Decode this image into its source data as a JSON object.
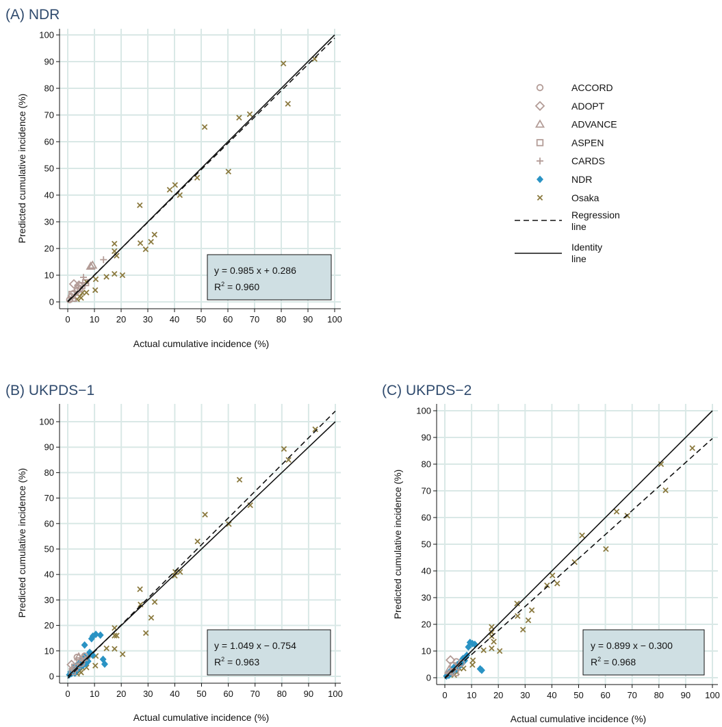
{
  "colors": {
    "trial_marker": "#b39c97",
    "ndr_marker": "#2a93c4",
    "osaka_marker": "#8b7a3f",
    "grid": "#d9e8e6",
    "equation_box": "#cfdfe3",
    "title": "#2f4a6d"
  },
  "legend": {
    "items": [
      {
        "label": "ACCORD",
        "marker": "circle-icon"
      },
      {
        "label": "ADOPT",
        "marker": "diamond-icon"
      },
      {
        "label": "ADVANCE",
        "marker": "triangle-icon"
      },
      {
        "label": "ASPEN",
        "marker": "square-icon"
      },
      {
        "label": "CARDS",
        "marker": "plus-icon"
      },
      {
        "label": "NDR",
        "marker": "filled-diamond-icon"
      },
      {
        "label": "Osaka",
        "marker": "cross-icon"
      }
    ],
    "regression": [
      "Regression",
      "line"
    ],
    "identity": [
      "Identity",
      "line"
    ]
  },
  "chart_data": [
    {
      "type": "scatter",
      "title": "(A) NDR",
      "xlabel": "Actual cumulative incidence (%)",
      "ylabel": "Predicted cumulative incidence (%)",
      "xlim": [
        0,
        100
      ],
      "ylim": [
        0,
        100
      ],
      "ticks": [
        "0",
        "10",
        "20",
        "30",
        "40",
        "50",
        "60",
        "70",
        "80",
        "90",
        "100"
      ],
      "grid": true,
      "equation": "y = 0.985 x + 0.286",
      "r2_prefix": "R",
      "r2_sup": "2",
      "r2_value": " = 0.960",
      "regression": {
        "slope": 0.985,
        "intercept": 0.286
      },
      "series": {
        "osaka": [
          [
            92.5,
            91
          ],
          [
            80.8,
            89.3
          ],
          [
            82.5,
            74.2
          ],
          [
            68.2,
            70.3
          ],
          [
            64.2,
            69
          ],
          [
            51.3,
            65.5
          ],
          [
            60.2,
            48.8
          ],
          [
            48.5,
            46.5
          ],
          [
            40.2,
            43.8
          ],
          [
            38.2,
            42
          ],
          [
            42,
            40
          ],
          [
            27,
            36.2
          ],
          [
            32.5,
            25.2
          ],
          [
            31.2,
            22.5
          ],
          [
            27.2,
            22
          ],
          [
            29.2,
            19.7
          ],
          [
            17.5,
            21.8
          ],
          [
            17.5,
            19
          ],
          [
            18.3,
            17.3
          ],
          [
            17.5,
            10.5
          ],
          [
            20.5,
            10
          ],
          [
            14.5,
            9.4
          ],
          [
            10.5,
            8.5
          ],
          [
            10.3,
            4.4
          ],
          [
            7,
            7.5
          ],
          [
            7,
            3.5
          ],
          [
            5.5,
            3.4
          ],
          [
            4.5,
            2
          ],
          [
            3.5,
            1
          ],
          [
            5,
            1.5
          ]
        ],
        "ndr": [],
        "trial": [
          {
            "m": "triangle",
            "x": 9.3,
            "y": 13.7
          },
          {
            "m": "triangle",
            "x": 8.6,
            "y": 13.3
          },
          {
            "m": "plus",
            "x": 13.4,
            "y": 15.8
          },
          {
            "m": "plus",
            "x": 5.9,
            "y": 9.2
          },
          {
            "m": "diamond",
            "x": 2.3,
            "y": 6.7
          },
          {
            "m": "diamond",
            "x": 4.2,
            "y": 6.2
          },
          {
            "m": "square",
            "x": 5.3,
            "y": 6.1
          },
          {
            "m": "square",
            "x": 6.7,
            "y": 7.2
          },
          {
            "m": "square",
            "x": 3.8,
            "y": 5
          },
          {
            "m": "circle",
            "x": 1.3,
            "y": 2
          },
          {
            "m": "circle",
            "x": 2.2,
            "y": 3.2
          },
          {
            "m": "circle",
            "x": 0.7,
            "y": 0.8
          },
          {
            "m": "circle",
            "x": 3.4,
            "y": 4.1
          },
          {
            "m": "plus",
            "x": 2.8,
            "y": 2.5
          },
          {
            "m": "triangle",
            "x": 1.9,
            "y": 1.3
          },
          {
            "m": "circle",
            "x": 4.6,
            "y": 4.8
          },
          {
            "m": "square",
            "x": 1.6,
            "y": 2.8
          }
        ]
      }
    },
    {
      "type": "scatter",
      "title": "(B) UKPDS−1",
      "xlabel": "Actual cumulative incidence (%)",
      "ylabel": "Predicted cumulative incidence (%)",
      "xlim": [
        0,
        100
      ],
      "ylim": [
        0,
        100
      ],
      "ticks": [
        "0",
        "10",
        "20",
        "30",
        "40",
        "50",
        "60",
        "70",
        "80",
        "90",
        "100"
      ],
      "grid": true,
      "equation": "y = 1.049 x − 0.754",
      "r2_prefix": "R",
      "r2_sup": "2",
      "r2_value": " = 0.963",
      "regression": {
        "slope": 1.049,
        "intercept": -0.754
      },
      "series": {
        "osaka": [
          [
            92.5,
            97
          ],
          [
            80.8,
            89.3
          ],
          [
            82.5,
            85
          ],
          [
            64.2,
            77.2
          ],
          [
            68.2,
            67.2
          ],
          [
            51.3,
            63.5
          ],
          [
            60.2,
            59.8
          ],
          [
            48.5,
            53
          ],
          [
            40.2,
            41
          ],
          [
            42,
            41
          ],
          [
            40,
            39.5
          ],
          [
            27,
            34.2
          ],
          [
            32.5,
            29.2
          ],
          [
            31.2,
            23
          ],
          [
            29.2,
            17
          ],
          [
            27.2,
            28.2
          ],
          [
            17.5,
            19
          ],
          [
            17.5,
            16
          ],
          [
            18.3,
            16
          ],
          [
            17.5,
            10.8
          ],
          [
            20.5,
            8.7
          ],
          [
            14.5,
            11
          ],
          [
            10.5,
            8
          ],
          [
            10.3,
            4.2
          ],
          [
            7,
            7.5
          ],
          [
            7,
            3.5
          ],
          [
            5.5,
            3.4
          ],
          [
            4.5,
            2
          ],
          [
            3.5,
            1
          ],
          [
            5,
            1.5
          ]
        ],
        "ndr": [
          [
            10.5,
            16.5
          ],
          [
            12.2,
            16.2
          ],
          [
            9.4,
            15.8
          ],
          [
            8.9,
            14.8
          ],
          [
            6.3,
            12.3
          ],
          [
            13.2,
            6.7
          ],
          [
            13.8,
            4.8
          ],
          [
            9.3,
            8.3
          ],
          [
            7.4,
            7.4
          ],
          [
            6.2,
            7.8
          ],
          [
            5.1,
            6.1
          ],
          [
            4.6,
            5.4
          ],
          [
            3.5,
            4.5
          ],
          [
            2.3,
            3.5
          ],
          [
            1.8,
            2.5
          ],
          [
            1.1,
            1.7
          ],
          [
            0.6,
            0.6
          ],
          [
            8.2,
            9.4
          ],
          [
            4.1,
            3.2
          ],
          [
            5.7,
            4.3
          ],
          [
            3.1,
            2.2
          ],
          [
            2.6,
            1.3
          ],
          [
            7.6,
            5.9
          ],
          [
            6.8,
            4.9
          ],
          [
            1.4,
            1.1
          ]
        ],
        "trial": [
          {
            "m": "circle",
            "x": 3.5,
            "y": 7.5
          },
          {
            "m": "circle",
            "x": 6.3,
            "y": 8
          },
          {
            "m": "diamond",
            "x": 1.4,
            "y": 4.6
          },
          {
            "m": "diamond",
            "x": 5.8,
            "y": 6.9
          },
          {
            "m": "square",
            "x": 2.6,
            "y": 3.6
          },
          {
            "m": "square",
            "x": 4.5,
            "y": 6.1
          },
          {
            "m": "triangle",
            "x": 4.1,
            "y": 7.6
          },
          {
            "m": "plus",
            "x": 7.3,
            "y": 7.3
          },
          {
            "m": "circle",
            "x": 2.2,
            "y": 2.8
          },
          {
            "m": "circle",
            "x": 5.2,
            "y": 5.1
          },
          {
            "m": "plus",
            "x": 3.7,
            "y": 3.2
          },
          {
            "m": "square",
            "x": 1.7,
            "y": 1.9
          }
        ]
      }
    },
    {
      "type": "scatter",
      "title": "(C) UKPDS−2",
      "xlabel": "Actual cumulative incidence (%)",
      "ylabel": "Predicted cumulative incidence (%)",
      "xlim": [
        0,
        100
      ],
      "ylim": [
        0,
        100
      ],
      "ticks": [
        "0",
        "10",
        "20",
        "30",
        "40",
        "50",
        "60",
        "70",
        "80",
        "90",
        "100"
      ],
      "grid": true,
      "equation": "y = 0.899 x − 0.300",
      "r2_prefix": "R",
      "r2_sup": "2",
      "r2_value": " = 0.968",
      "regression": {
        "slope": 0.899,
        "intercept": -0.3
      },
      "series": {
        "osaka": [
          [
            92.5,
            86
          ],
          [
            80.8,
            80
          ],
          [
            82.5,
            70.2
          ],
          [
            68.2,
            60.7
          ],
          [
            64.2,
            62.2
          ],
          [
            51.3,
            53.3
          ],
          [
            60.2,
            48.2
          ],
          [
            48.5,
            43.3
          ],
          [
            40.2,
            38.3
          ],
          [
            38.2,
            34.6
          ],
          [
            42,
            35.3
          ],
          [
            32.5,
            25.3
          ],
          [
            27,
            27.8
          ],
          [
            27.2,
            23.1
          ],
          [
            31.2,
            21.5
          ],
          [
            29.2,
            18
          ],
          [
            17.5,
            19
          ],
          [
            17.5,
            17
          ],
          [
            17.5,
            15.5
          ],
          [
            18.3,
            13.5
          ],
          [
            17.5,
            11
          ],
          [
            20.5,
            10
          ],
          [
            14.5,
            10.3
          ],
          [
            10.5,
            6.5
          ],
          [
            10.3,
            4.8
          ],
          [
            7,
            7
          ],
          [
            7,
            3.5
          ],
          [
            5.5,
            3.4
          ],
          [
            4.5,
            2
          ],
          [
            3.5,
            1
          ]
        ],
        "ndr": [
          [
            9.4,
            13.2
          ],
          [
            10.3,
            12.8
          ],
          [
            11.2,
            12.5
          ],
          [
            8.8,
            11.5
          ],
          [
            13.2,
            3.3
          ],
          [
            13.8,
            2.8
          ],
          [
            8.2,
            8.4
          ],
          [
            6.8,
            7.2
          ],
          [
            5.6,
            5.7
          ],
          [
            4.6,
            4.8
          ],
          [
            3.4,
            3.9
          ],
          [
            2.6,
            3
          ],
          [
            1.8,
            2.2
          ],
          [
            1.1,
            1.3
          ],
          [
            0.6,
            0.6
          ],
          [
            7.4,
            6.4
          ],
          [
            5.1,
            4.1
          ],
          [
            6.2,
            5
          ],
          [
            3.1,
            2.4
          ],
          [
            2.3,
            1.6
          ],
          [
            4.1,
            3
          ],
          [
            1.5,
            0.9
          ]
        ],
        "trial": [
          {
            "m": "diamond",
            "x": 2.1,
            "y": 6.6
          },
          {
            "m": "circle",
            "x": 4.3,
            "y": 6
          },
          {
            "m": "circle",
            "x": 6.2,
            "y": 5.5
          },
          {
            "m": "square",
            "x": 3.1,
            "y": 4.5
          },
          {
            "m": "triangle",
            "x": 1.6,
            "y": 3
          },
          {
            "m": "plus",
            "x": 5.2,
            "y": 4.3
          },
          {
            "m": "circle",
            "x": 2.7,
            "y": 2.1
          },
          {
            "m": "square",
            "x": 3.9,
            "y": 1.9
          },
          {
            "m": "plus",
            "x": 1.2,
            "y": 1.5
          }
        ]
      }
    }
  ]
}
